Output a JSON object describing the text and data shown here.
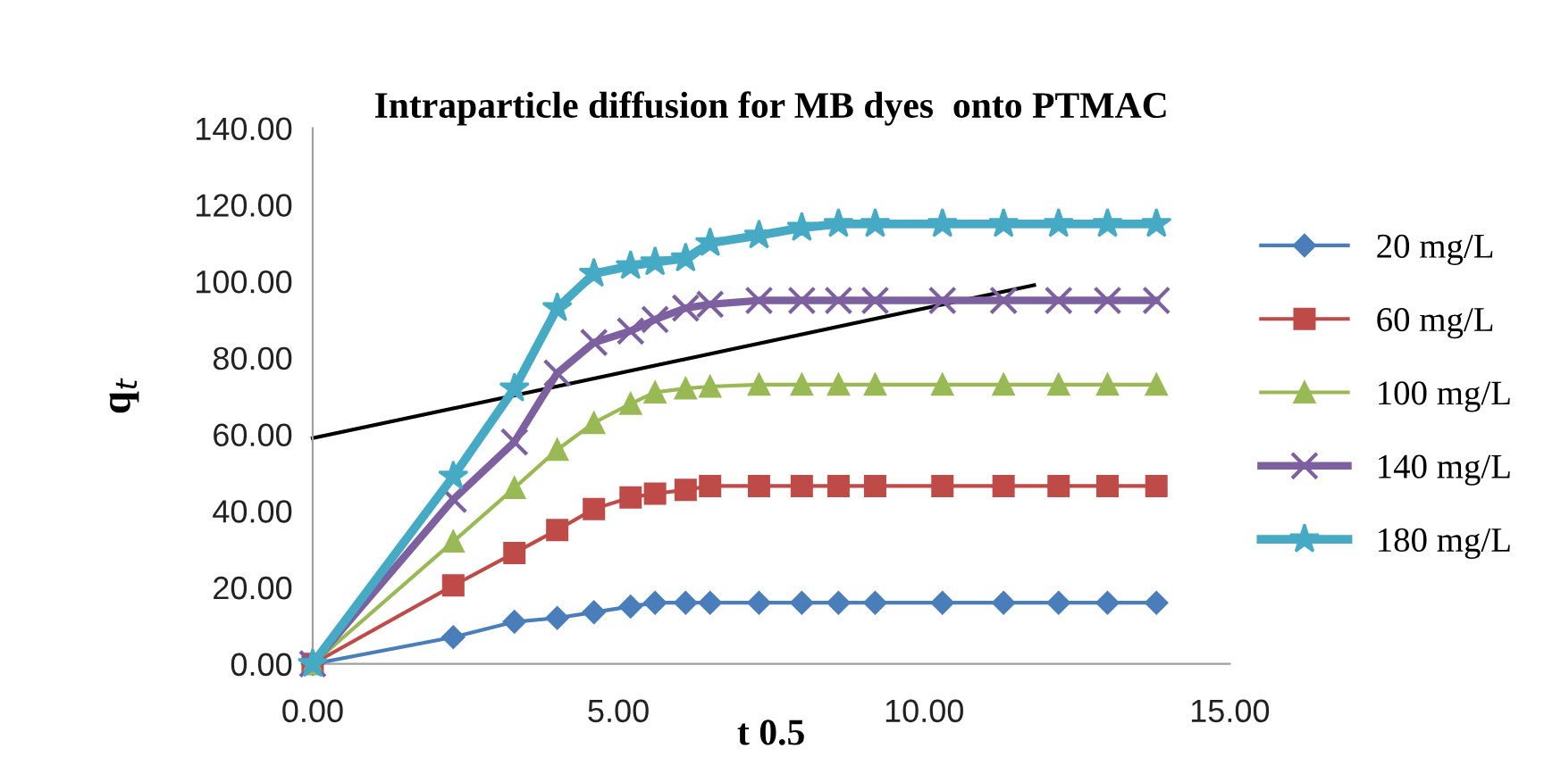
{
  "chart_data": {
    "type": "line",
    "title": "Intraparticle diffusion for MB dyes  onto PTMAC",
    "xlabel": "t 0.5",
    "ylabel": "q$_{t}$",
    "xlim": [
      0,
      15
    ],
    "ylim": [
      0,
      140
    ],
    "xticks": [
      {
        "value": 0,
        "label": "0.00"
      },
      {
        "value": 5,
        "label": "5.00"
      },
      {
        "value": 10,
        "label": "10.00"
      },
      {
        "value": 15,
        "label": "15.00"
      }
    ],
    "yticks": [
      {
        "value": 0,
        "label": "0.00"
      },
      {
        "value": 20,
        "label": "20.00"
      },
      {
        "value": 40,
        "label": "40.00"
      },
      {
        "value": 60,
        "label": "60.00"
      },
      {
        "value": 80,
        "label": "80.00"
      },
      {
        "value": 100,
        "label": "100.00"
      },
      {
        "value": 120,
        "label": "120.00"
      },
      {
        "value": 140,
        "label": "140.00"
      }
    ],
    "grid": false,
    "legend": "right",
    "line_style": "solid",
    "x": [
      0,
      2.3,
      3.3,
      4.0,
      4.6,
      5.2,
      5.6,
      6.1,
      6.5,
      7.3,
      8.0,
      8.6,
      9.2,
      10.3,
      11.3,
      12.2,
      13.0,
      13.8
    ],
    "series": [
      {
        "name": "20 mg/L",
        "color": "#4a7ebb",
        "marker": "diamond",
        "values": [
          0,
          7,
          11,
          12,
          13.5,
          15,
          16,
          16,
          16,
          16,
          16,
          16,
          16,
          16,
          16,
          16,
          16,
          16
        ]
      },
      {
        "name": "60 mg/L",
        "color": "#be4b48",
        "marker": "square",
        "values": [
          0,
          20.5,
          29,
          35,
          40.5,
          43.5,
          44.5,
          45.5,
          46.5,
          46.5,
          46.5,
          46.5,
          46.5,
          46.5,
          46.5,
          46.5,
          46.5,
          46.5
        ]
      },
      {
        "name": "100 mg/L",
        "color": "#98b954",
        "marker": "triangle",
        "values": [
          0,
          32,
          46,
          56,
          63,
          68,
          71,
          72,
          72.5,
          73,
          73,
          73,
          73,
          73,
          73,
          73,
          73,
          73
        ]
      },
      {
        "name": "140 mg/L",
        "color": "#7d60a0",
        "marker": "cross",
        "values": [
          0,
          43,
          58,
          76,
          84,
          87,
          90,
          93,
          94,
          95,
          95,
          95,
          95,
          95,
          95,
          95,
          95,
          95
        ]
      },
      {
        "name": "180 mg/L",
        "color": "#46aac5",
        "marker": "star",
        "values": [
          0,
          49,
          72,
          93,
          102,
          104,
          105,
          106,
          110,
          112,
          114,
          115,
          115,
          115,
          115,
          115,
          115,
          115
        ]
      },
      {
        "type": "line",
        "color": "#000000",
        "marker": "none",
        "x": [
          0,
          11.8
        ],
        "values": [
          59,
          99
        ]
      }
    ]
  }
}
